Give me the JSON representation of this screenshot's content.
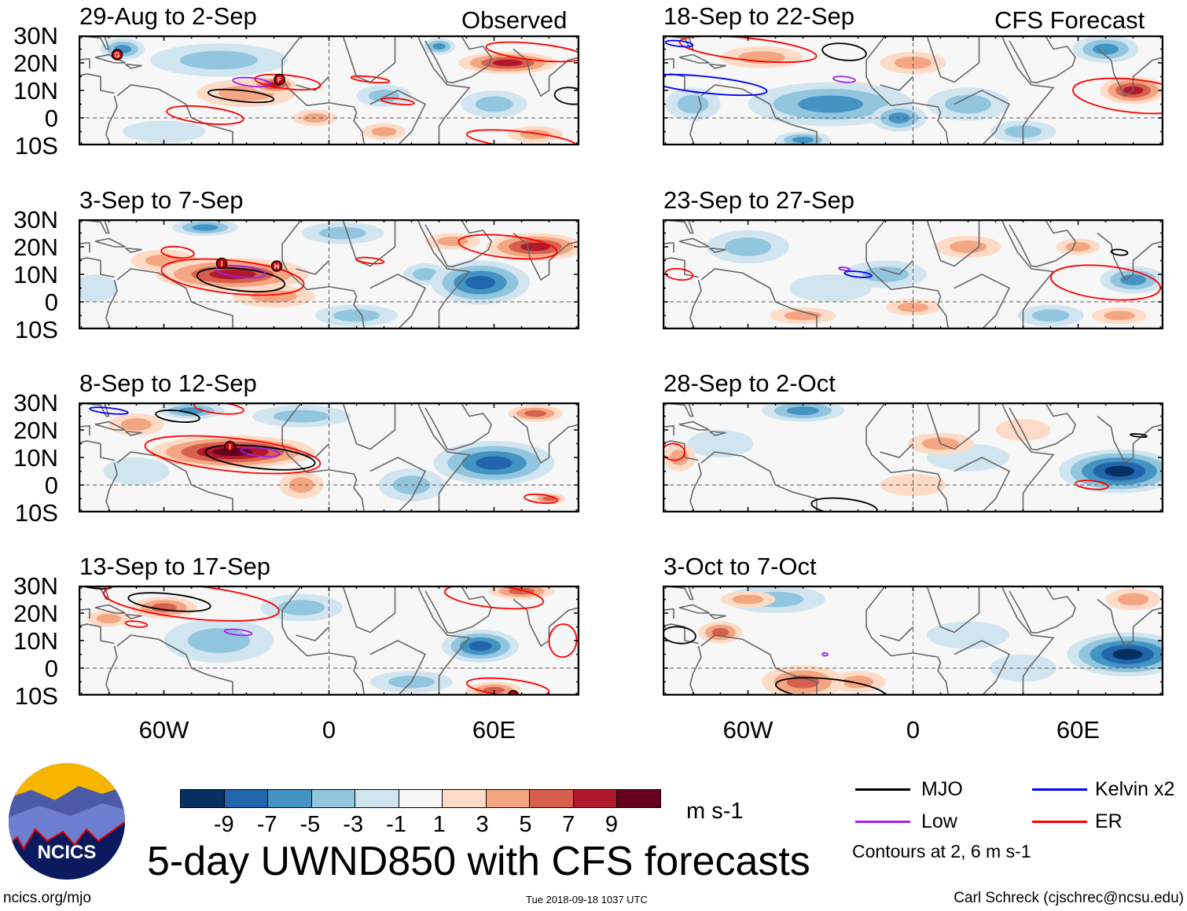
{
  "header": {
    "left_label": "Observed",
    "right_label": "CFS Forecast"
  },
  "axes": {
    "lat_labels": [
      "30N",
      "20N",
      "10N",
      "0",
      "10S"
    ],
    "lat_values": [
      30,
      20,
      10,
      0,
      -10
    ],
    "lon_labels": [
      "60W",
      "0",
      "60E"
    ],
    "lon_values": [
      -60,
      0,
      60
    ]
  },
  "footer": {
    "title": "5-day UWND850 with CFS forecasts",
    "url": "ncics.org/mjo",
    "timestamp": "Tue 2018-09-18 1037 UTC",
    "author": "Carl Schreck (cjschrec@ncsu.edu)",
    "logo_text": "NCICS"
  },
  "colorbar": {
    "unit": "m s-1",
    "labels": [
      "-9",
      "-7",
      "-5",
      "-3",
      "-1",
      "1",
      "3",
      "5",
      "7",
      "9"
    ],
    "colors": [
      "#053061",
      "#2166ac",
      "#4393c3",
      "#92c5de",
      "#d1e5f0",
      "#f7f7f7",
      "#fddbc7",
      "#f4a582",
      "#d6604d",
      "#b2182b",
      "#67001f"
    ]
  },
  "legend": {
    "items": [
      {
        "label": "MJO",
        "color": "#000000"
      },
      {
        "label": "Kelvin x2",
        "color": "#0000ff"
      },
      {
        "label": "Low",
        "color": "#a020f0"
      },
      {
        "label": "ER",
        "color": "#ff0000"
      }
    ],
    "note": "Contours at 2, 6 m s-1"
  },
  "chart_data": {
    "type": "heatmap",
    "variable": "850-hPa zonal wind anomaly",
    "units": "m s-1",
    "lon_range": [
      -91,
      90
    ],
    "lat_range": [
      -10,
      30
    ],
    "panels": [
      {
        "title": "29-Aug to 2-Sep",
        "column": "observed",
        "anomalies": [
          [
            -75,
            25,
            8,
            4,
            -5
          ],
          [
            -40,
            21,
            25,
            6,
            -3
          ],
          [
            40,
            26,
            6,
            3,
            -5
          ],
          [
            20,
            8,
            10,
            4,
            -3
          ],
          [
            60,
            5,
            12,
            5,
            -3
          ],
          [
            -60,
            -5,
            15,
            4,
            -1
          ],
          [
            -30,
            9,
            18,
            5,
            3
          ],
          [
            -20,
            12,
            8,
            3,
            7
          ],
          [
            65,
            20,
            18,
            4,
            7
          ],
          [
            20,
            -5,
            8,
            3,
            3
          ],
          [
            75,
            -6,
            10,
            3,
            3
          ],
          [
            -5,
            0,
            8,
            3,
            3
          ]
        ],
        "contours": [
          [
            "MJO",
            -32,
            8,
            12,
            2
          ],
          [
            "MJO",
            88,
            8,
            6,
            3
          ],
          [
            "Low",
            -28,
            13,
            7,
            1.5
          ],
          [
            "ER",
            -15,
            13,
            12,
            2.5
          ],
          [
            "ER",
            -45,
            1,
            14,
            3
          ],
          [
            "ER",
            25,
            6,
            6,
            1
          ],
          [
            "ER",
            15,
            14,
            7,
            1
          ],
          [
            "ER",
            75,
            24,
            18,
            3
          ],
          [
            "ER",
            70,
            -8,
            20,
            3
          ]
        ],
        "storms": [
          {
            "label": "G",
            "lon": -77,
            "lat": 23
          },
          {
            "label": "F",
            "lon": -18,
            "lat": 14
          }
        ]
      },
      {
        "title": "3-Sep to 7-Sep",
        "column": "observed",
        "anomalies": [
          [
            -45,
            27,
            12,
            3,
            -5
          ],
          [
            5,
            25,
            15,
            4,
            -3
          ],
          [
            -85,
            5,
            8,
            5,
            -1
          ],
          [
            55,
            7,
            18,
            8,
            -7
          ],
          [
            10,
            -5,
            15,
            4,
            -3
          ],
          [
            35,
            10,
            8,
            4,
            -3
          ],
          [
            -35,
            10,
            28,
            6,
            7
          ],
          [
            -60,
            15,
            12,
            4,
            3
          ],
          [
            75,
            20,
            18,
            5,
            7
          ],
          [
            -20,
            2,
            15,
            4,
            3
          ],
          [
            45,
            22,
            10,
            3,
            3
          ]
        ],
        "contours": [
          [
            "MJO",
            -32,
            8,
            16,
            4
          ],
          [
            "Low",
            -32,
            11,
            9,
            2
          ],
          [
            "ER",
            -35,
            9,
            26,
            6
          ],
          [
            "ER",
            -55,
            18,
            6,
            2
          ],
          [
            "ER",
            15,
            15,
            5,
            1
          ],
          [
            "ER",
            65,
            20,
            18,
            4
          ]
        ],
        "storms": [
          {
            "label": "I",
            "lon": -39,
            "lat": 14
          },
          {
            "label": "H",
            "lon": -19,
            "lat": 13
          }
        ]
      },
      {
        "title": "8-Sep to 12-Sep",
        "column": "observed",
        "anomalies": [
          [
            -50,
            27,
            12,
            3,
            -5
          ],
          [
            -10,
            25,
            18,
            4,
            -3
          ],
          [
            60,
            8,
            22,
            8,
            -7
          ],
          [
            30,
            0,
            12,
            6,
            -3
          ],
          [
            -70,
            5,
            12,
            5,
            -1
          ],
          [
            -35,
            12,
            30,
            6,
            9
          ],
          [
            -70,
            22,
            10,
            4,
            3
          ],
          [
            75,
            26,
            10,
            3,
            5
          ],
          [
            -10,
            0,
            8,
            5,
            3
          ],
          [
            80,
            -5,
            6,
            2,
            5
          ]
        ],
        "contours": [
          [
            "MJO",
            -55,
            25,
            8,
            2
          ],
          [
            "MJO",
            -25,
            10,
            20,
            4
          ],
          [
            "Low",
            -25,
            12,
            7,
            1.5
          ],
          [
            "Kelvin x2",
            -80,
            27,
            7,
            1
          ],
          [
            "ER",
            -35,
            11,
            32,
            6
          ],
          [
            "ER",
            -40,
            28,
            9,
            2
          ],
          [
            "ER",
            77,
            -5,
            6,
            1.5
          ]
        ],
        "storms": [
          {
            "label": "I",
            "lon": -36,
            "lat": 14
          }
        ]
      },
      {
        "title": "13-Sep to 17-Sep",
        "column": "observed",
        "anomalies": [
          [
            -40,
            10,
            20,
            8,
            -3
          ],
          [
            55,
            8,
            14,
            6,
            -7
          ],
          [
            -10,
            22,
            15,
            5,
            -3
          ],
          [
            30,
            -5,
            15,
            4,
            -3
          ],
          [
            -60,
            22,
            12,
            4,
            5
          ],
          [
            70,
            28,
            12,
            3,
            5
          ],
          [
            60,
            -8,
            10,
            3,
            5
          ],
          [
            -80,
            18,
            8,
            3,
            3
          ]
        ],
        "contours": [
          [
            "MJO",
            -58,
            24,
            15,
            3
          ],
          [
            "MJO",
            -85,
            30,
            6,
            1
          ],
          [
            "ER",
            -50,
            24,
            32,
            6
          ],
          [
            "ER",
            -70,
            16,
            4,
            1
          ],
          [
            "ER",
            60,
            26,
            18,
            4
          ],
          [
            "ER",
            65,
            -7,
            15,
            3
          ],
          [
            "ER",
            85,
            10,
            5,
            6
          ],
          [
            "Low",
            -33,
            13,
            5,
            1
          ]
        ],
        "storms": [
          {
            "label": "",
            "lon": 67,
            "lat": -10
          }
        ]
      },
      {
        "title": "18-Sep to 22-Sep",
        "column": "forecast",
        "anomalies": [
          [
            -30,
            5,
            30,
            8,
            -5
          ],
          [
            -5,
            0,
            10,
            5,
            -5
          ],
          [
            20,
            5,
            15,
            6,
            -3
          ],
          [
            70,
            25,
            12,
            5,
            -5
          ],
          [
            -80,
            5,
            10,
            6,
            -3
          ],
          [
            40,
            -5,
            12,
            4,
            -3
          ],
          [
            -40,
            -8,
            10,
            3,
            -5
          ],
          [
            80,
            10,
            12,
            5,
            7
          ],
          [
            -55,
            22,
            15,
            4,
            3
          ],
          [
            0,
            20,
            12,
            4,
            3
          ],
          [
            -20,
            10,
            8,
            3,
            3
          ]
        ],
        "contours": [
          [
            "ER",
            -60,
            25,
            25,
            4
          ],
          [
            "ER",
            80,
            8,
            22,
            6
          ],
          [
            "MJO",
            -25,
            24,
            8,
            3
          ],
          [
            "Kelvin x2",
            -75,
            12,
            22,
            3
          ],
          [
            "Kelvin x2",
            -85,
            27,
            5,
            1
          ],
          [
            "Low",
            -25,
            14,
            4,
            1
          ]
        ],
        "storms": []
      },
      {
        "title": "23-Sep to 27-Sep",
        "column": "forecast",
        "anomalies": [
          [
            -60,
            20,
            15,
            6,
            -3
          ],
          [
            -10,
            10,
            15,
            5,
            -3
          ],
          [
            80,
            8,
            12,
            5,
            -5
          ],
          [
            50,
            -5,
            12,
            4,
            -3
          ],
          [
            -30,
            5,
            15,
            5,
            -1
          ],
          [
            20,
            20,
            12,
            4,
            3
          ],
          [
            60,
            20,
            8,
            3,
            3
          ],
          [
            75,
            -5,
            10,
            3,
            3
          ],
          [
            -40,
            -5,
            12,
            3,
            3
          ],
          [
            0,
            -2,
            10,
            3,
            3
          ]
        ],
        "contours": [
          [
            "ER",
            70,
            7,
            20,
            6
          ],
          [
            "ER",
            -85,
            10,
            5,
            2
          ],
          [
            "Kelvin x2",
            -20,
            10,
            5,
            1
          ],
          [
            "Low",
            -25,
            12,
            2,
            0.5
          ],
          [
            "MJO",
            75,
            18,
            3,
            1
          ]
        ],
        "storms": []
      },
      {
        "title": "28-Sep to 2-Oct",
        "column": "forecast",
        "anomalies": [
          [
            -40,
            27,
            15,
            4,
            -5
          ],
          [
            75,
            5,
            22,
            8,
            -9
          ],
          [
            -70,
            15,
            12,
            5,
            -1
          ],
          [
            20,
            10,
            15,
            5,
            -1
          ],
          [
            -85,
            10,
            6,
            5,
            3
          ],
          [
            10,
            15,
            12,
            4,
            3
          ],
          [
            0,
            0,
            12,
            4,
            1
          ],
          [
            40,
            20,
            10,
            4,
            1
          ]
        ],
        "contours": [
          [
            "ER",
            65,
            0,
            6,
            1.5
          ],
          [
            "ER",
            -87,
            12,
            4,
            3
          ],
          [
            "MJO",
            -25,
            -8,
            12,
            3
          ],
          [
            "MJO",
            82,
            18,
            3,
            0.5
          ]
        ],
        "storms": []
      },
      {
        "title": "3-Oct to 7-Oct",
        "column": "forecast",
        "anomalies": [
          [
            78,
            5,
            22,
            8,
            -9
          ],
          [
            -50,
            25,
            18,
            5,
            -3
          ],
          [
            20,
            12,
            15,
            5,
            -1
          ],
          [
            40,
            0,
            12,
            5,
            -1
          ],
          [
            -70,
            13,
            8,
            4,
            5
          ],
          [
            -40,
            -5,
            15,
            6,
            5
          ],
          [
            -20,
            -5,
            10,
            4,
            3
          ],
          [
            80,
            25,
            10,
            4,
            3
          ],
          [
            -60,
            25,
            10,
            3,
            3
          ]
        ],
        "contours": [
          [
            "MJO",
            -85,
            12,
            6,
            3
          ],
          [
            "MJO",
            -30,
            -8,
            20,
            4
          ],
          [
            "Low",
            -32,
            5,
            1,
            0.5
          ]
        ],
        "storms": []
      }
    ]
  }
}
